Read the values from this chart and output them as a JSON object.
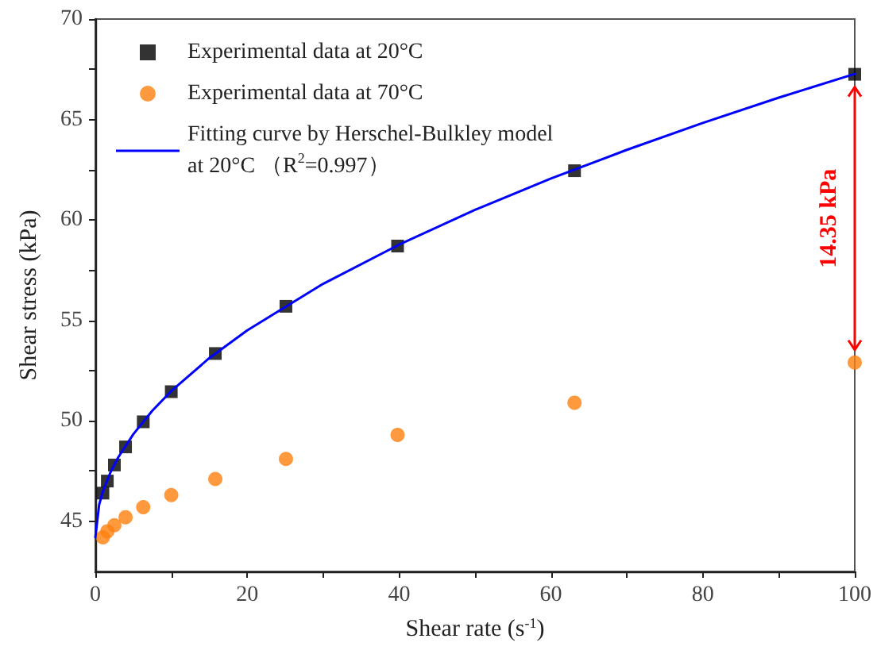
{
  "chart_data": {
    "type": "scatter",
    "xlabel": "Shear rate (s$^{-1}$)",
    "ylabel": "Shear stress (kPa)",
    "xlim": [
      0,
      100
    ],
    "xticks": [
      0,
      20,
      40,
      60,
      80,
      100
    ],
    "ylim": [
      42.5,
      70
    ],
    "yticks": [
      45,
      50,
      55,
      60,
      65,
      70
    ],
    "grid": false,
    "legend": "top left",
    "series": [
      {
        "name": "Experimental data at 20°C",
        "marker": "square",
        "color": "#000000",
        "x": [
          1,
          1.58,
          2.51,
          3.98,
          6.31,
          10,
          15.8,
          25.1,
          39.8,
          63.1,
          100
        ],
        "values": [
          46.4,
          47.0,
          47.8,
          48.7,
          49.95,
          51.45,
          53.35,
          55.7,
          58.7,
          62.45,
          67.25
        ]
      },
      {
        "name": "Experimental data at 70°C",
        "marker": "circle",
        "color": "#ff7f0e",
        "x": [
          1,
          1.58,
          2.51,
          3.98,
          6.31,
          10,
          15.8,
          25.1,
          39.8,
          63.1,
          100
        ],
        "values": [
          44.2,
          44.5,
          44.8,
          45.2,
          45.7,
          46.3,
          47.1,
          48.1,
          49.3,
          50.9,
          52.9
        ]
      },
      {
        "name": "Fitting curve by Herschel-Bulkley model\nat 20°C （R$^{2}$=0.997）",
        "type": "line",
        "marker": "none",
        "line_style": "solid",
        "color": "#0000ff",
        "x": [
          0,
          0.5,
          1,
          2,
          3,
          5,
          7.5,
          10,
          15,
          20,
          30,
          40,
          50,
          60,
          70,
          80,
          90,
          100
        ],
        "values": [
          44.2,
          45.82,
          46.49,
          47.44,
          48.17,
          49.33,
          50.5,
          51.48,
          53.12,
          54.5,
          56.82,
          58.77,
          60.5,
          62.06,
          63.49,
          64.83,
          66.09,
          67.27
        ]
      }
    ],
    "annotations": [
      "14.35 kPa"
    ]
  }
}
